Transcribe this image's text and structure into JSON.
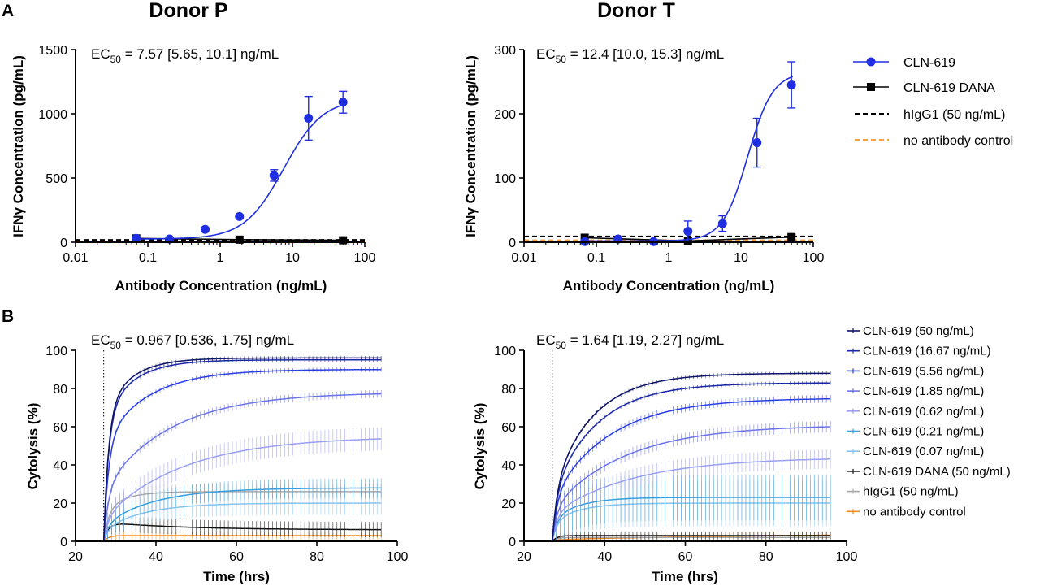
{
  "panel_labels": {
    "a": "A",
    "b": "B"
  },
  "colors": {
    "cln619": "#1f2fe0",
    "dana": "#000000",
    "higg1": "#000000",
    "noab": "#f5a040",
    "b_series": [
      "#0d1366",
      "#1b27a6",
      "#2a3ee0",
      "#6b73e6",
      "#9a9ff0",
      "#3a9fdc",
      "#86c3ee",
      "#111111",
      "#a8a8a8",
      "#f08a1c"
    ]
  },
  "chart_data": [
    {
      "id": "a_left",
      "type": "scatter",
      "title": "Donor P",
      "annotation": {
        "pre": "EC",
        "sub": "50",
        "post": " = 7.57 [5.65, 10.1] ng/mL"
      },
      "xlabel": "Antibody Concentration  (ng/mL)",
      "ylabel": "IFNγ Concentration (pg/mL)",
      "xscale": "log",
      "xlim": [
        0.01,
        100
      ],
      "ylim": [
        0,
        1500
      ],
      "xticks": [
        0.01,
        0.1,
        1,
        10,
        100
      ],
      "xtick_labels": [
        "0.01",
        "0.1",
        "1",
        "10",
        "100"
      ],
      "yticks": [
        0,
        500,
        1000,
        1500
      ],
      "ytick_labels": [
        "0",
        "500",
        "1000",
        "1500"
      ],
      "series": [
        {
          "name": "CLN-619",
          "marker": "circle",
          "x": [
            0.069,
            0.2,
            0.62,
            1.85,
            5.56,
            16.67,
            50
          ],
          "y": [
            30,
            25,
            100,
            200,
            520,
            965,
            1090
          ],
          "err": [
            8,
            8,
            12,
            15,
            45,
            170,
            85
          ],
          "fit": {
            "bottom": 25,
            "top": 1120,
            "ec50": 7.57,
            "hill": 1.6
          }
        },
        {
          "name": "CLN-619 DANA",
          "marker": "square",
          "x": [
            0.069,
            1.85,
            50
          ],
          "y": [
            30,
            20,
            15
          ]
        },
        {
          "name": "hIgG1 (50 ng/mL)",
          "line": "dashed",
          "y": 18
        },
        {
          "name": "no antibody control",
          "line": "dashed",
          "y": 8
        }
      ]
    },
    {
      "id": "a_right",
      "type": "scatter",
      "title": "Donor T",
      "annotation": {
        "pre": "EC",
        "sub": "50",
        "post": " = 12.4 [10.0, 15.3] ng/mL"
      },
      "xlabel": "Antibody Concentration (ng/mL)",
      "ylabel": "IFNγ Concentration (pg/mL)",
      "xscale": "log",
      "xlim": [
        0.01,
        100
      ],
      "ylim": [
        0,
        300
      ],
      "xticks": [
        0.01,
        0.1,
        1,
        10,
        100
      ],
      "xtick_labels": [
        "0.01",
        "0.1",
        "1",
        "10",
        "100"
      ],
      "yticks": [
        0,
        100,
        200,
        300
      ],
      "ytick_labels": [
        "0",
        "100",
        "200",
        "300"
      ],
      "series": [
        {
          "name": "CLN-619",
          "marker": "circle",
          "x": [
            0.069,
            0.2,
            0.62,
            1.85,
            5.56,
            16.67,
            50
          ],
          "y": [
            1,
            5,
            1,
            17,
            29,
            155,
            245
          ],
          "err": [
            2,
            3,
            2,
            16,
            12,
            38,
            36
          ],
          "fit": {
            "bottom": 2,
            "top": 265,
            "ec50": 12.4,
            "hill": 2.5
          }
        },
        {
          "name": "CLN-619 DANA",
          "marker": "square",
          "x": [
            0.069,
            1.85,
            50
          ],
          "y": [
            7,
            2,
            8
          ]
        },
        {
          "name": "hIgG1 (50 ng/mL)",
          "line": "dashed",
          "y": 9
        },
        {
          "name": "no antibody control",
          "line": "dashed",
          "y": 3
        }
      ]
    },
    {
      "id": "b_left",
      "type": "line",
      "annotation": {
        "pre": "EC",
        "sub": "50",
        "post": " = 0.967 [0.536, 1.75] ng/mL"
      },
      "xlabel": "Time (hrs)",
      "ylabel": "Cytolysis (%)",
      "xlim": [
        20,
        100
      ],
      "ylim": [
        0,
        100
      ],
      "xticks": [
        20,
        40,
        60,
        80,
        100
      ],
      "yticks": [
        0,
        20,
        40,
        60,
        80,
        100
      ],
      "treatment_time": 27,
      "series": [
        {
          "name": "CLN-619 (50 ng/mL)",
          "plateau": 96,
          "k": 0.15,
          "a": 0.7,
          "err": 1
        },
        {
          "name": "CLN-619 (16.67 ng/mL)",
          "plateau": 95,
          "k": 0.14,
          "a": 0.68,
          "err": 1
        },
        {
          "name": "CLN-619 (5.56 ng/mL)",
          "plateau": 90,
          "k": 0.09,
          "a": 0.58,
          "err": 1.2
        },
        {
          "name": "CLN-619 (1.85 ng/mL)",
          "plateau": 78,
          "k": 0.06,
          "a": 0.35,
          "err": 2
        },
        {
          "name": "CLN-619 (0.62 ng/mL)",
          "plateau": 55,
          "k": 0.05,
          "a": 0.22,
          "err": 6
        },
        {
          "name": "CLN-619 (0.21 ng/mL)",
          "plateau": 28,
          "k": 0.08,
          "a": 0.3,
          "err": 5
        },
        {
          "name": "CLN-619 (0.07 ng/mL)",
          "plateau": 20,
          "k": 0.1,
          "a": 0.3,
          "err": 6
        },
        {
          "name": "CLN-619 DANA (50 ng/mL)",
          "plateau": 10,
          "k": 0.5,
          "a": 1,
          "err": 4,
          "decay": 0.05
        },
        {
          "name": "hIgG1 (50 ng/mL)",
          "plateau": 26,
          "k": 0.2,
          "a": 0.6,
          "err": 4
        },
        {
          "name": "no antibody control",
          "plateau": 3,
          "k": 0.3,
          "a": 1,
          "err": 2
        }
      ]
    },
    {
      "id": "b_right",
      "type": "line",
      "annotation": {
        "pre": "EC",
        "sub": "50",
        "post": " = 1.64 [1.19, 2.27] ng/mL"
      },
      "xlabel": "Time (hrs)",
      "ylabel": "Cytolysis (%)",
      "xlim": [
        20,
        100
      ],
      "ylim": [
        0,
        100
      ],
      "xticks": [
        20,
        40,
        60,
        80,
        100
      ],
      "yticks": [
        0,
        20,
        40,
        60,
        80,
        100
      ],
      "treatment_time": 27,
      "series": [
        {
          "name": "CLN-619 (50 ng/mL)",
          "plateau": 88,
          "k": 0.1,
          "a": 0.3,
          "err": 1
        },
        {
          "name": "CLN-619 (16.67 ng/mL)",
          "plateau": 83,
          "k": 0.09,
          "a": 0.3,
          "err": 1
        },
        {
          "name": "CLN-619 (5.56 ng/mL)",
          "plateau": 75,
          "k": 0.07,
          "a": 0.3,
          "err": 2
        },
        {
          "name": "CLN-619 (1.85 ng/mL)",
          "plateau": 61,
          "k": 0.055,
          "a": 0.28,
          "err": 3
        },
        {
          "name": "CLN-619 (0.62 ng/mL)",
          "plateau": 44,
          "k": 0.05,
          "a": 0.32,
          "err": 5
        },
        {
          "name": "CLN-619 (0.21 ng/mL)",
          "plateau": 23,
          "k": 0.15,
          "a": 0.5,
          "err": 12
        },
        {
          "name": "CLN-619 (0.07 ng/mL)",
          "plateau": 20,
          "k": 0.15,
          "a": 0.5,
          "err": 12
        },
        {
          "name": "CLN-619 DANA (50 ng/mL)",
          "plateau": 3,
          "k": 0.3,
          "a": 1,
          "err": 2
        },
        {
          "name": "hIgG1 (50 ng/mL)",
          "plateau": 2,
          "k": 0.3,
          "a": 1,
          "err": 1.5
        },
        {
          "name": "no antibody control",
          "plateau": 4,
          "k": 0.02,
          "a": 0.2,
          "err": 2
        }
      ]
    }
  ],
  "legend_a": [
    {
      "label": "CLN-619",
      "style": "circle"
    },
    {
      "label": "CLN-619 DANA",
      "style": "square"
    },
    {
      "label": "hIgG1 (50 ng/mL)",
      "style": "dash-black"
    },
    {
      "label": "no antibody control",
      "style": "dash-orange"
    }
  ],
  "legend_b": [
    "CLN-619 (50 ng/mL)",
    "CLN-619 (16.67 ng/mL)",
    "CLN-619 (5.56 ng/mL)",
    "CLN-619 (1.85 ng/mL)",
    "CLN-619 (0.62 ng/mL)",
    "CLN-619 (0.21 ng/mL)",
    "CLN-619 (0.07 ng/mL)",
    "CLN-619 DANA (50 ng/mL)",
    "hIgG1 (50 ng/mL)",
    "no antibody control"
  ]
}
